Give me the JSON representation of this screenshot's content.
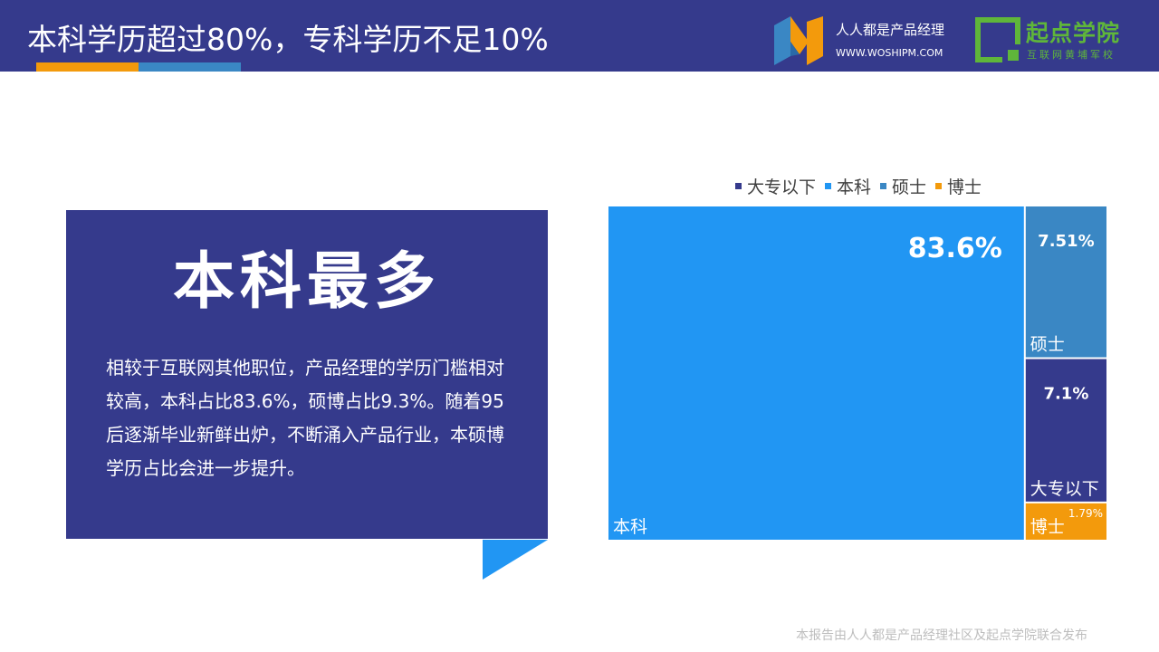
{
  "header": {
    "title": "本科学历超过80%，专科学历不足10%",
    "logo1_name": "人人都是产品经理",
    "logo1_url": "WWW.WOSHIPM.COM",
    "logo2_name": "起点学院",
    "logo2_tagline": "互联网黄埔军校"
  },
  "card": {
    "title": "本科最多",
    "body": "相较于互联网其他职位，产品经理的学历门槛相对较高，本科占比83.6%，硕博占比9.3%。随着95后逐渐毕业新鲜出炉，不断涌入产品行业，本硕博学历占比会进一步提升。"
  },
  "chart_data": {
    "type": "treemap",
    "legend": [
      "大专以下",
      "本科",
      "硕士",
      "博士"
    ],
    "legend_position": "top",
    "items": [
      {
        "name": "本科",
        "value": 83.6,
        "label": "83.6%",
        "color": "#2196f3"
      },
      {
        "name": "硕士",
        "value": 7.51,
        "label": "7.51%",
        "color": "#3a87c4"
      },
      {
        "name": "大专以下",
        "value": 7.1,
        "label": "7.1%",
        "color": "#353a8c"
      },
      {
        "name": "博士",
        "value": 1.79,
        "label": "1.79%",
        "color": "#f39a0c"
      }
    ]
  },
  "footer": "本报告由人人都是产品经理社区及起点学院联合发布"
}
